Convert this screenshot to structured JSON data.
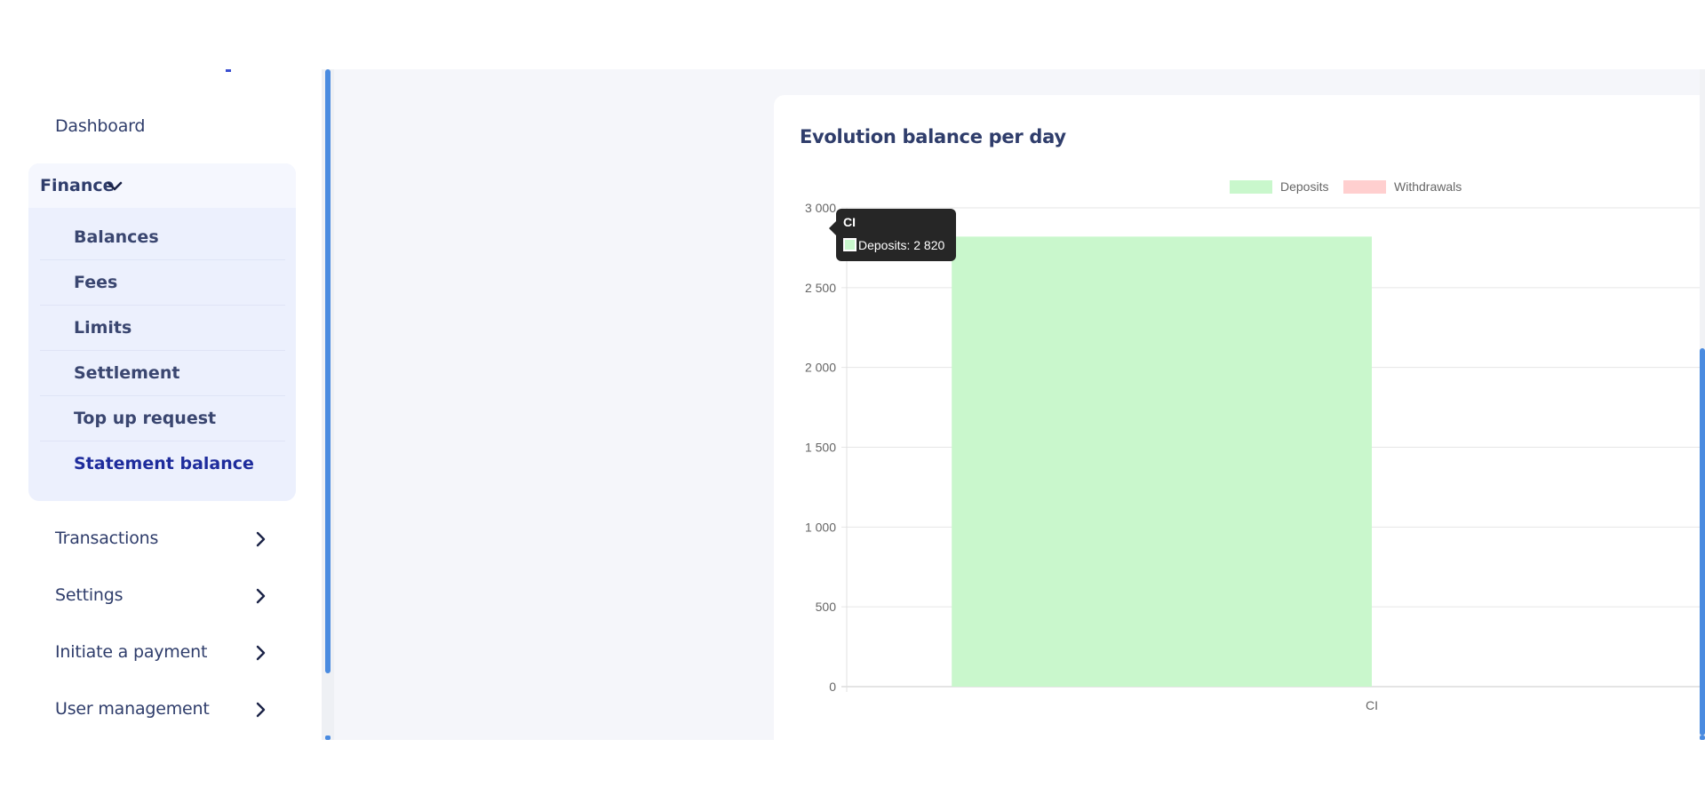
{
  "sidebar": {
    "dashboard": "Dashboard",
    "finance": {
      "label": "Finance",
      "items": [
        {
          "label": "Balances"
        },
        {
          "label": "Fees"
        },
        {
          "label": "Limits"
        },
        {
          "label": "Settlement"
        },
        {
          "label": "Top up request"
        },
        {
          "label": "Statement balance",
          "active": true
        }
      ]
    },
    "transactions": "Transactions",
    "settings": "Settings",
    "initiate_payment": "Initiate a payment",
    "user_management": "User management"
  },
  "card": {
    "title": "Evolution balance per day"
  },
  "tooltip": {
    "title": "CI",
    "text": "Deposits: 2 820"
  },
  "colors": {
    "deposits": "#c9f7cc",
    "withdrawals": "#ffcfcf",
    "accent": "#4a8be0"
  },
  "chart_data": {
    "type": "bar",
    "categories": [
      "CI"
    ],
    "series": [
      {
        "name": "Deposits",
        "values": [
          2820
        ]
      },
      {
        "name": "Withdrawals",
        "values": [
          0
        ]
      }
    ],
    "ylim": [
      0,
      3000
    ],
    "yticks": [
      "0",
      "500",
      "1 000",
      "1 500",
      "2 000",
      "2 500",
      "3 000"
    ],
    "yticks_values": [
      0,
      500,
      1000,
      1500,
      2000,
      2500,
      3000
    ],
    "grid": true,
    "legend_position": "top-center"
  }
}
